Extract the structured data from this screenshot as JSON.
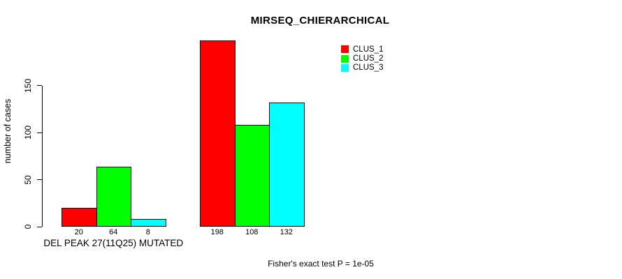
{
  "title": "MIRSEQ_CHIERARCHICAL",
  "annotation": "Fisher's exact test P = 1e-05",
  "chart_data": {
    "type": "bar",
    "title": "MIRSEQ_CHIERARCHICAL",
    "xlabel": "",
    "ylabel": "number of cases",
    "yticks": [
      0,
      50,
      100,
      150
    ],
    "ylim": [
      0,
      205
    ],
    "grid": false,
    "legend_position": "top-right",
    "series": [
      {
        "name": "CLUS_1",
        "color": "#FF0000"
      },
      {
        "name": "CLUS_2",
        "color": "#00FF00"
      },
      {
        "name": "CLUS_3",
        "color": "#00FFFF"
      }
    ],
    "groups": [
      {
        "label": "DEL PEAK 27(11Q25) MUTATED",
        "values": [
          20,
          64,
          8
        ]
      },
      {
        "label": "",
        "values": [
          198,
          108,
          132
        ]
      }
    ],
    "bar_value_labels": [
      [
        20,
        64,
        8
      ],
      [
        198,
        108,
        132
      ]
    ],
    "annotation": "Fisher's exact test P = 1e-05"
  }
}
